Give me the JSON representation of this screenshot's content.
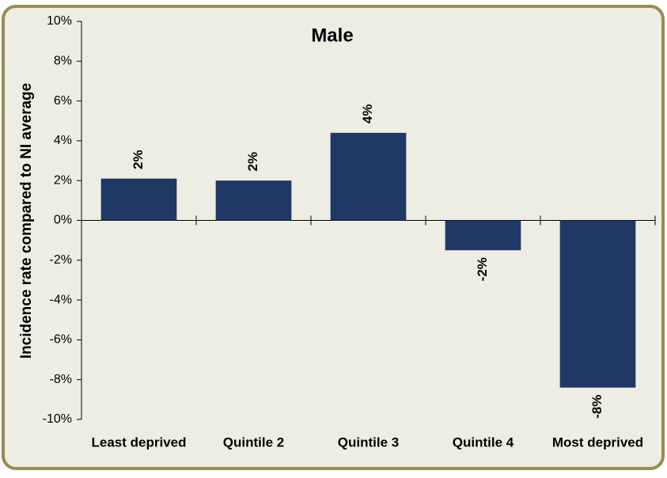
{
  "chart_data": {
    "type": "bar",
    "title": "Male",
    "y_label": "Incidence rate compared to NI average",
    "categories": [
      "Least deprived",
      "Quintile 2",
      "Quintile 3",
      "Quintile 4",
      "Most deprived"
    ],
    "values": [
      2.1,
      2.0,
      4.4,
      -1.5,
      -8.4
    ],
    "value_labels": [
      "2%",
      "2%",
      "4%",
      "-2%",
      "-8%"
    ],
    "color": "#1f3864",
    "ylim": [
      -10,
      10
    ],
    "yticks": [
      {
        "value": -10,
        "label": "-10%"
      },
      {
        "value": -8,
        "label": "-8%"
      },
      {
        "value": -6,
        "label": "-6%"
      },
      {
        "value": -4,
        "label": "-4%"
      },
      {
        "value": -2,
        "label": "-2%"
      },
      {
        "value": 0,
        "label": "0%"
      },
      {
        "value": 2,
        "label": "2%"
      },
      {
        "value": 4,
        "label": "4%"
      },
      {
        "value": 6,
        "label": "6%"
      },
      {
        "value": 8,
        "label": "8%"
      },
      {
        "value": 10,
        "label": "10%"
      }
    ]
  }
}
